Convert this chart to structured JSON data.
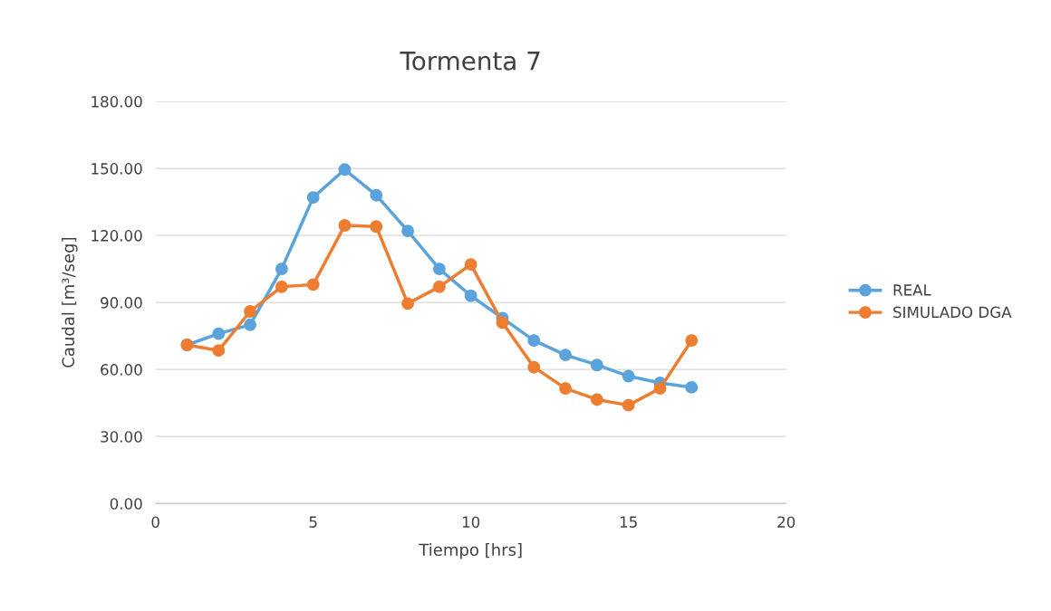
{
  "chart_data": {
    "type": "line",
    "title": "Tormenta 7",
    "xlabel": "Tiempo [hrs]",
    "ylabel": "Caudal [m³/seg]",
    "x": [
      1,
      2,
      3,
      4,
      5,
      6,
      7,
      8,
      9,
      10,
      11,
      12,
      13,
      14,
      15,
      16,
      17
    ],
    "series": [
      {
        "name": "REAL",
        "color": "#5ba3dc",
        "values": [
          71,
          76,
          80,
          105,
          137,
          149.5,
          138,
          122,
          105,
          93,
          83,
          73,
          66.5,
          62,
          57,
          54,
          52
        ]
      },
      {
        "name": "SIMULADO DGA",
        "color": "#ed7d31",
        "values": [
          71,
          68.5,
          86,
          97,
          98,
          124.5,
          124,
          89.5,
          97,
          107,
          81,
          61,
          51.5,
          46.5,
          44,
          51.5,
          73
        ]
      }
    ],
    "xlim": [
      0,
      20
    ],
    "xticks": [
      0,
      5,
      10,
      15,
      20
    ],
    "ylim": [
      0,
      180
    ],
    "yticks": [
      {
        "value": 0,
        "label": "0.00"
      },
      {
        "value": 30,
        "label": "30.00"
      },
      {
        "value": 60,
        "label": "60.00"
      },
      {
        "value": 90,
        "label": "90.00"
      },
      {
        "value": 120,
        "label": "120.00"
      },
      {
        "value": 150,
        "label": "150.00"
      },
      {
        "value": 180,
        "label": "180.00"
      }
    ],
    "grid": "y",
    "legend": "right",
    "marker": "circle",
    "line_style": "solid"
  }
}
